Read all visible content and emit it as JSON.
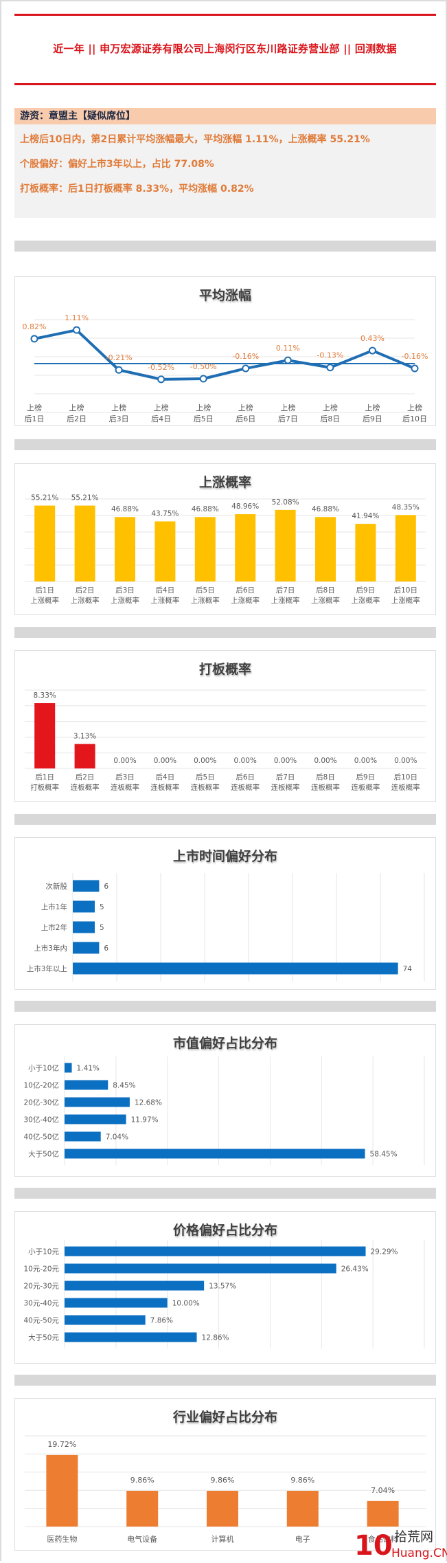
{
  "header": {
    "title": "近一年  ||  申万宏源证券有限公司上海闵行区东川路证券营业部  ||  回测数据"
  },
  "summary": {
    "heading": "游资：章盟主【疑似席位】",
    "lines": [
      "上榜后10日内，第2日累计平均涨幅最大，平均涨幅 1.11%，上涨概率 55.21%",
      "个股偏好：偏好上市3年以上，占比 77.08%",
      "打板概率：后1日打板概率 8.33%，平均涨幅 0.82%"
    ]
  },
  "colors": {
    "accent_red": "#d9151b",
    "summary_orange": "#e07b39",
    "summary_head_bg": "#f8cbad",
    "line_blue": "#1f6eb3",
    "bar_yellow": "#ffc000",
    "bar_red": "#e3161b",
    "bar_blue": "#0b6fc2",
    "bar_orange": "#ed7d31",
    "label_orange": "#e07b39"
  },
  "watermark": {
    "text_cn": "拾荒网",
    "text_en": "Huang.CN",
    "logo": "10"
  },
  "chart_data": [
    {
      "type": "line",
      "title": "平均涨幅",
      "categories": [
        "上榜\n后1日",
        "上榜\n后2日",
        "上榜\n后3日",
        "上榜\n后4日",
        "上榜\n后5日",
        "上榜\n后6日",
        "上榜\n后7日",
        "上榜\n后8日",
        "上榜\n后9日",
        "上榜\n后10日"
      ],
      "cat_line1": [
        "上榜",
        "上榜",
        "上榜",
        "上榜",
        "上榜",
        "上榜",
        "上榜",
        "上榜",
        "上榜",
        "上榜"
      ],
      "cat_line2": [
        "后1日",
        "后2日",
        "后3日",
        "后4日",
        "后5日",
        "后6日",
        "后7日",
        "后8日",
        "后9日",
        "后10日"
      ],
      "values": [
        0.82,
        1.11,
        -0.21,
        -0.52,
        -0.5,
        -0.16,
        0.11,
        -0.13,
        0.43,
        -0.16
      ],
      "labels": [
        "0.82%",
        "1.11%",
        "-0.21%",
        "-0.52%",
        "-0.50%",
        "-0.16%",
        "0.11%",
        "-0.13%",
        "0.43%",
        "-0.16%"
      ],
      "xlabel": "",
      "ylabel": "",
      "grid": true,
      "legend": "none"
    },
    {
      "type": "bar",
      "title": "上涨概率",
      "cat_line1": [
        "后1日",
        "后2日",
        "后3日",
        "后4日",
        "后5日",
        "后6日",
        "后7日",
        "后8日",
        "后9日",
        "后10日"
      ],
      "cat_line2": [
        "上涨概率",
        "上涨概率",
        "上涨概率",
        "上涨概率",
        "上涨概率",
        "上涨概率",
        "上涨概率",
        "上涨概率",
        "上涨概率",
        "上涨概率"
      ],
      "values": [
        55.21,
        55.21,
        46.88,
        43.75,
        46.88,
        48.96,
        52.08,
        46.88,
        41.94,
        48.35
      ],
      "labels": [
        "55.21%",
        "55.21%",
        "46.88%",
        "43.75%",
        "46.88%",
        "48.96%",
        "52.08%",
        "46.88%",
        "41.94%",
        "48.35%"
      ],
      "ylim": [
        0,
        60
      ],
      "grid": true,
      "legend": "none"
    },
    {
      "type": "bar",
      "title": "打板概率",
      "cat_line1": [
        "后1日",
        "后2日",
        "后3日",
        "后4日",
        "后5日",
        "后6日",
        "后7日",
        "后8日",
        "后9日",
        "后10日"
      ],
      "cat_line2": [
        "打板概率",
        "连板概率",
        "连板概率",
        "连板概率",
        "连板概率",
        "连板概率",
        "连板概率",
        "连板概率",
        "连板概率",
        "连板概率"
      ],
      "values": [
        8.33,
        3.13,
        0,
        0,
        0,
        0,
        0,
        0,
        0,
        0
      ],
      "labels": [
        "8.33%",
        "3.13%",
        "0.00%",
        "0.00%",
        "0.00%",
        "0.00%",
        "0.00%",
        "0.00%",
        "0.00%",
        "0.00%"
      ],
      "ylim": [
        0,
        10
      ],
      "grid": true,
      "legend": "none"
    },
    {
      "type": "bar",
      "orientation": "horizontal",
      "title": "上市时间偏好分布",
      "categories": [
        "次新股",
        "上市1年",
        "上市2年",
        "上市3年内",
        "上市3年以上"
      ],
      "values": [
        6,
        5,
        5,
        6,
        74
      ],
      "labels": [
        "6",
        "5",
        "5",
        "6",
        "74"
      ],
      "xlim": [
        0,
        80
      ],
      "grid": true,
      "legend": "none"
    },
    {
      "type": "bar",
      "orientation": "horizontal",
      "title": "市值偏好占比分布",
      "categories": [
        "小于10亿",
        "10亿-20亿",
        "20亿-30亿",
        "30亿-40亿",
        "40亿-50亿",
        "大于50亿"
      ],
      "values": [
        1.41,
        8.45,
        12.68,
        11.97,
        7.04,
        58.45
      ],
      "labels": [
        "1.41%",
        "8.45%",
        "12.68%",
        "11.97%",
        "7.04%",
        "58.45%"
      ],
      "xlim": [
        0,
        70
      ],
      "grid": true,
      "legend": "none"
    },
    {
      "type": "bar",
      "orientation": "horizontal",
      "title": "价格偏好占比分布",
      "categories": [
        "小于10元",
        "10元-20元",
        "20元-30元",
        "30元-40元",
        "40元-50元",
        "大于50元"
      ],
      "values": [
        29.29,
        26.43,
        13.57,
        10.0,
        7.86,
        12.86
      ],
      "labels": [
        "29.29%",
        "26.43%",
        "13.57%",
        "10.00%",
        "7.86%",
        "12.86%"
      ],
      "xlim": [
        0,
        35
      ],
      "grid": true,
      "legend": "none"
    },
    {
      "type": "bar",
      "title": "行业偏好占比分布",
      "categories": [
        "医药生物",
        "电气设备",
        "计算机",
        "电子",
        "食品饮料"
      ],
      "values": [
        19.72,
        9.86,
        9.86,
        9.86,
        7.04
      ],
      "labels": [
        "19.72%",
        "9.86%",
        "9.86%",
        "9.86%",
        "7.04%"
      ],
      "ylim": [
        0,
        25
      ],
      "grid": true,
      "legend": "none"
    }
  ]
}
